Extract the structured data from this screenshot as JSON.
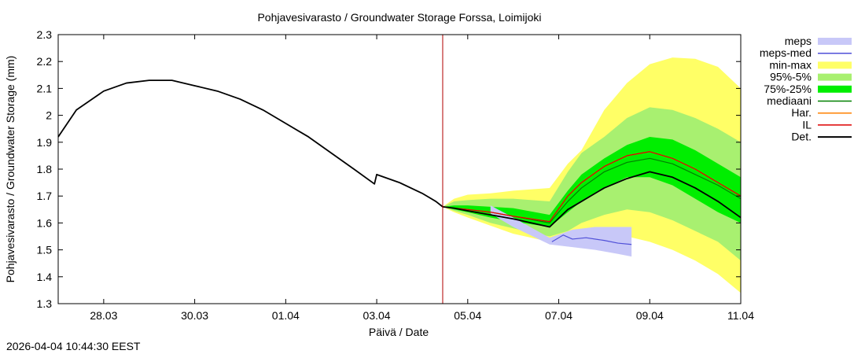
{
  "chart_data": {
    "type": "area",
    "title": "Pohjavesivarasto / Groundwater Storage   Forssa, Loimijoki",
    "xlabel": "Päivä / Date",
    "ylabel": "Pohjavesivarasto / Groundwater Storage (mm)",
    "x_unit": "days since 27.03 00:00",
    "xlim": [
      0,
      15
    ],
    "ylim": [
      1.3,
      2.3
    ],
    "yticks": [
      1.3,
      1.4,
      1.5,
      1.6,
      1.7,
      1.8,
      1.9,
      2,
      2.1,
      2.2,
      2.3
    ],
    "ytick_labels": [
      "1.3",
      "1.4",
      "1.5",
      "1.6",
      "1.7",
      "1.8",
      "1.9",
      "2",
      "2.1",
      "2.2",
      "2.3"
    ],
    "xticks": [
      1,
      3,
      5,
      7,
      9,
      11,
      13,
      15
    ],
    "xtick_labels": [
      "28.03",
      "30.03",
      "01.04",
      "03.04",
      "05.04",
      "07.04",
      "09.04",
      "11.04"
    ],
    "forecast_start": 8.45,
    "timestamp": "2026-04-04 10:44:30 EEST",
    "legend": [
      {
        "label": "meps",
        "style": "band",
        "color": "#c8c8f8"
      },
      {
        "label": "meps-med",
        "style": "line",
        "color": "#5050d8"
      },
      {
        "label": "min-max",
        "style": "band",
        "color": "#ffff66"
      },
      {
        "label": "95%-5%",
        "style": "band",
        "color": "#a8f070"
      },
      {
        "label": "75%-25%",
        "style": "band",
        "color": "#00ee00"
      },
      {
        "label": "mediaani",
        "style": "line",
        "color": "#008000"
      },
      {
        "label": "Har.",
        "style": "line",
        "color": "#ff8000"
      },
      {
        "label": "IL",
        "style": "line",
        "color": "#dd0000"
      },
      {
        "label": "Det.",
        "style": "line",
        "color": "#000000"
      }
    ],
    "series": [
      {
        "name": "Det. (history)",
        "x": [
          0,
          0.4,
          1,
          1.5,
          2,
          2.5,
          3,
          3.5,
          4,
          4.5,
          5,
          5.5,
          6,
          6.5,
          6.95,
          7.0,
          7.5,
          8,
          8.3,
          8.45
        ],
        "y": [
          1.92,
          2.02,
          2.09,
          2.12,
          2.13,
          2.13,
          2.11,
          2.09,
          2.06,
          2.02,
          1.97,
          1.92,
          1.86,
          1.8,
          1.745,
          1.78,
          1.75,
          1.71,
          1.68,
          1.66
        ]
      },
      {
        "name": "min-max upper",
        "x": [
          8.45,
          8.7,
          9,
          9.5,
          10,
          10.8,
          11.2,
          11.5,
          11.8,
          12,
          12.5,
          13,
          13.5,
          14,
          14.5,
          15
        ],
        "y": [
          1.66,
          1.69,
          1.705,
          1.71,
          1.72,
          1.73,
          1.82,
          1.87,
          1.96,
          2.02,
          2.12,
          2.19,
          2.215,
          2.21,
          2.18,
          2.1
        ]
      },
      {
        "name": "min-max lower",
        "x": [
          8.45,
          8.7,
          9,
          9.5,
          10,
          10.8,
          11.2,
          11.5,
          11.8,
          12,
          12.5,
          13,
          13.5,
          14,
          14.5,
          15
        ],
        "y": [
          1.66,
          1.64,
          1.62,
          1.59,
          1.56,
          1.53,
          1.54,
          1.55,
          1.555,
          1.56,
          1.55,
          1.53,
          1.5,
          1.46,
          1.41,
          1.34
        ]
      },
      {
        "name": "95%-5% upper",
        "x": [
          8.45,
          8.7,
          9,
          9.5,
          10,
          10.8,
          11.2,
          11.5,
          12,
          12.5,
          13,
          13.5,
          14,
          14.5,
          15
        ],
        "y": [
          1.66,
          1.68,
          1.685,
          1.69,
          1.69,
          1.68,
          1.79,
          1.86,
          1.92,
          1.99,
          2.03,
          2.02,
          1.99,
          1.95,
          1.9
        ]
      },
      {
        "name": "95%-5% lower",
        "x": [
          8.45,
          8.7,
          9,
          9.5,
          10,
          10.8,
          11.2,
          11.5,
          12,
          12.5,
          13,
          13.5,
          14,
          14.5,
          15
        ],
        "y": [
          1.66,
          1.645,
          1.63,
          1.6,
          1.58,
          1.55,
          1.57,
          1.6,
          1.63,
          1.65,
          1.64,
          1.61,
          1.57,
          1.53,
          1.46
        ]
      },
      {
        "name": "75%-25% upper",
        "x": [
          8.45,
          8.7,
          9,
          9.5,
          10,
          10.8,
          11.2,
          11.5,
          12,
          12.5,
          13,
          13.5,
          14,
          14.5,
          15
        ],
        "y": [
          1.66,
          1.665,
          1.665,
          1.66,
          1.655,
          1.63,
          1.72,
          1.78,
          1.84,
          1.89,
          1.92,
          1.91,
          1.87,
          1.82,
          1.77
        ]
      },
      {
        "name": "75%-25% lower",
        "x": [
          8.45,
          8.7,
          9,
          9.5,
          10,
          10.8,
          11.2,
          11.5,
          12,
          12.5,
          13,
          13.5,
          14,
          14.5,
          15
        ],
        "y": [
          1.66,
          1.65,
          1.64,
          1.62,
          1.605,
          1.585,
          1.64,
          1.68,
          1.73,
          1.77,
          1.77,
          1.74,
          1.69,
          1.64,
          1.6
        ]
      },
      {
        "name": "meps upper",
        "x": [
          9.5,
          10,
          10.8,
          11.3,
          11.8,
          12.3,
          12.6
        ],
        "y": [
          1.665,
          1.62,
          1.545,
          1.575,
          1.585,
          1.585,
          1.585
        ]
      },
      {
        "name": "meps lower",
        "x": [
          9.5,
          10,
          10.8,
          11.3,
          11.8,
          12.3,
          12.6
        ],
        "y": [
          1.635,
          1.585,
          1.52,
          1.51,
          1.5,
          1.485,
          1.475
        ]
      },
      {
        "name": "meps-med",
        "x": [
          10.85,
          11.1,
          11.3,
          11.6,
          12,
          12.3,
          12.6
        ],
        "y": [
          1.53,
          1.555,
          1.54,
          1.545,
          1.535,
          1.525,
          1.52
        ]
      },
      {
        "name": "mediaani",
        "x": [
          8.45,
          8.7,
          9,
          9.5,
          10,
          10.8,
          11.2,
          11.5,
          12,
          12.5,
          13,
          13.5,
          14,
          14.5,
          15
        ],
        "y": [
          1.66,
          1.655,
          1.65,
          1.64,
          1.625,
          1.6,
          1.68,
          1.73,
          1.79,
          1.825,
          1.84,
          1.82,
          1.78,
          1.74,
          1.69
        ]
      },
      {
        "name": "Har.",
        "x": [
          8.45,
          8.7,
          9,
          9.5,
          10,
          10.8,
          11.2,
          11.5,
          12,
          12.5,
          13,
          13.5,
          14,
          14.5,
          15
        ],
        "y": [
          1.66,
          1.655,
          1.65,
          1.64,
          1.625,
          1.605,
          1.7,
          1.75,
          1.81,
          1.85,
          1.865,
          1.84,
          1.8,
          1.75,
          1.7
        ]
      },
      {
        "name": "IL",
        "x": [
          8.45,
          8.7,
          9,
          9.5,
          10,
          10.8,
          11.2,
          11.5,
          12,
          12.5,
          13,
          13.5,
          14,
          14.5,
          15
        ],
        "y": [
          1.66,
          1.655,
          1.65,
          1.64,
          1.625,
          1.605,
          1.7,
          1.75,
          1.81,
          1.85,
          1.865,
          1.84,
          1.8,
          1.75,
          1.7
        ]
      },
      {
        "name": "Det. (forecast)",
        "x": [
          8.45,
          8.7,
          9,
          9.5,
          10,
          10.8,
          11.2,
          11.5,
          12,
          12.5,
          13,
          13.5,
          14,
          14.5,
          15
        ],
        "y": [
          1.66,
          1.655,
          1.645,
          1.63,
          1.615,
          1.585,
          1.65,
          1.68,
          1.73,
          1.765,
          1.79,
          1.77,
          1.73,
          1.68,
          1.62
        ]
      }
    ]
  }
}
